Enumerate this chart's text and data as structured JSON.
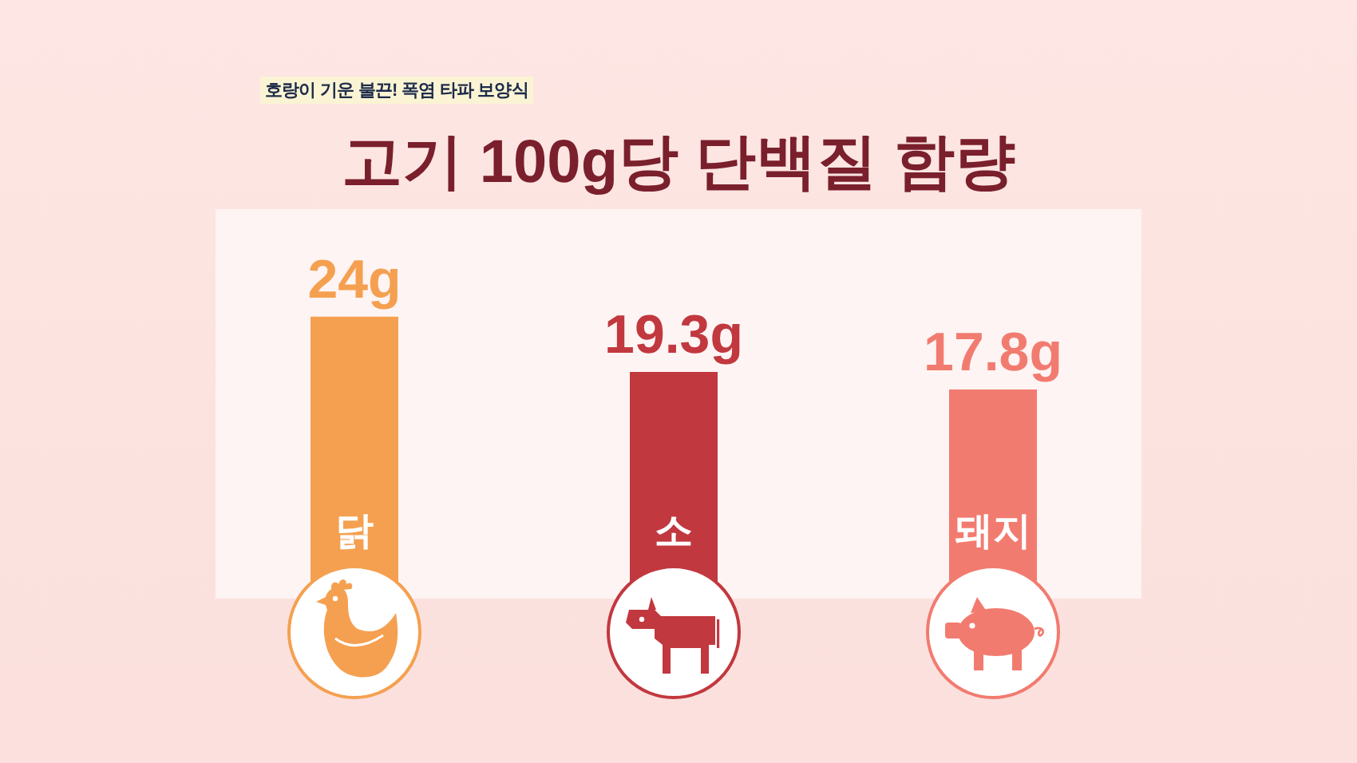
{
  "chart_data": {
    "type": "bar",
    "title": "고기 100g당 단백질 함량",
    "annotations": [
      "호랑이 기운 불끈! 폭염 타파 보양식"
    ],
    "categories": [
      "닭",
      "소",
      "돼지"
    ],
    "values": [
      24,
      19.3,
      17.8
    ],
    "colors": [
      "#f5a050",
      "#c2383f",
      "#f27b70"
    ],
    "value_labels": [
      "24g",
      "19.3g",
      "17.8g"
    ],
    "tick_labels": "x"
  }
}
